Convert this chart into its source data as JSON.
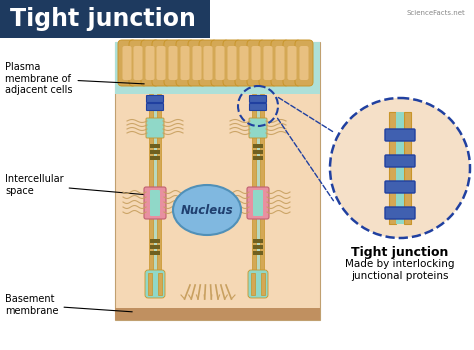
{
  "title": "Tight junction",
  "title_bg": "#1e3a5f",
  "title_color": "#ffffff",
  "bg_color": "#ffffff",
  "cell_bg": "#f5d8b5",
  "top_fluid_color": "#aee0d8",
  "basement_color": "#c09060",
  "membrane_outer": "#d4a855",
  "membrane_edge": "#c8952a",
  "membrane_inner_teal": "#90d8c8",
  "nucleus_color": "#80b8e0",
  "nucleus_edge": "#5090b8",
  "tj_blue_fill": "#4060b0",
  "tj_blue_edge": "#2040a0",
  "pink_band": "#e890a0",
  "pink_edge": "#c06070",
  "olive_band": "#706020",
  "tan_fiber": "#c8a060",
  "fiber_edge": "#b08040",
  "zoom_circle_color": "#2040a0",
  "inset_bg": "#f5e0c8",
  "labels": {
    "plasma": "Plasma\nmembrane of\nadjacent cells",
    "intercellular": "Intercellular\nspace",
    "nucleus": "Nucleus",
    "basement": "Basement\nmembrane",
    "tight_junction": "Tight junction",
    "description": "Made by interlocking\njunctional proteins"
  },
  "watermark": "ScienceFacts.net"
}
